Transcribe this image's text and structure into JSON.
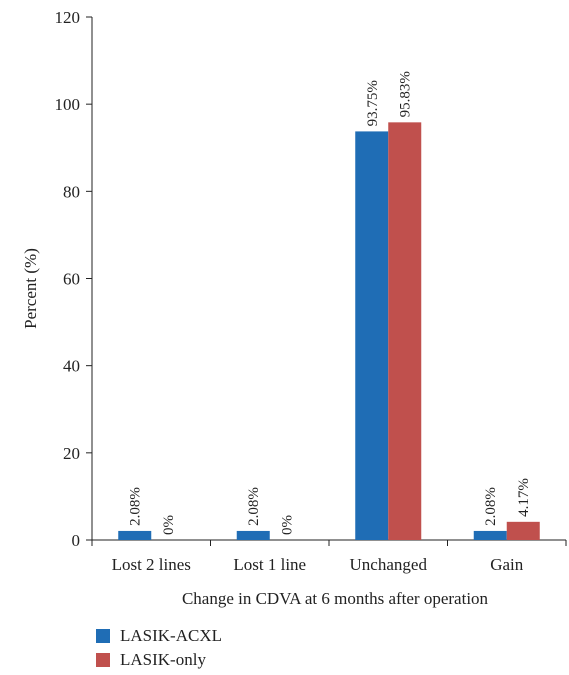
{
  "chart_data": {
    "type": "bar",
    "title": "",
    "xlabel": "Change in CDVA at 6 months after operation",
    "ylabel": "Percent (%)",
    "ylim": [
      0,
      120
    ],
    "yticks": [
      0,
      20,
      40,
      60,
      80,
      100,
      120
    ],
    "categories": [
      "Lost 2 lines",
      "Lost 1 line",
      "Unchanged",
      "Gain"
    ],
    "series": [
      {
        "name": "LASIK-ACXL",
        "color": "#1f6db5",
        "values": [
          2.08,
          2.08,
          93.75,
          2.08
        ],
        "labels": [
          "2.08%",
          "2.08%",
          "93.75%",
          "2.08%"
        ]
      },
      {
        "name": "LASIK-only",
        "color": "#c0504d",
        "values": [
          0,
          0,
          95.83,
          4.17
        ],
        "labels": [
          "0%",
          "0%",
          "95.83%",
          "4.17%"
        ]
      }
    ],
    "legend_position": "bottom-left",
    "grid": false
  }
}
